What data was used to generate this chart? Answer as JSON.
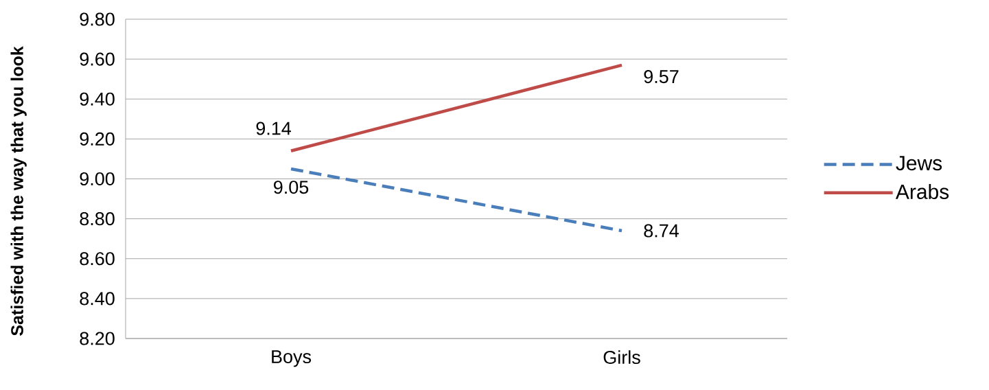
{
  "chart_data": {
    "type": "line",
    "ylabel": "Satisfied with the way that you look",
    "categories": [
      "Boys",
      "Girls"
    ],
    "series": [
      {
        "name": "Jews",
        "color": "#4a7ebb",
        "line_style": "dashed",
        "values": [
          9.05,
          8.74
        ]
      },
      {
        "name": "Arabs",
        "color": "#be4b48",
        "line_style": "solid",
        "values": [
          9.14,
          9.57
        ]
      }
    ],
    "ylim": [
      8.2,
      9.8
    ],
    "yticks": [
      {
        "value": 8.2,
        "label": "8.20"
      },
      {
        "value": 8.4,
        "label": "8.40"
      },
      {
        "value": 8.6,
        "label": "8.60"
      },
      {
        "value": 8.8,
        "label": "8.80"
      },
      {
        "value": 9.0,
        "label": "9.00"
      },
      {
        "value": 9.2,
        "label": "9.20"
      },
      {
        "value": 9.4,
        "label": "9.40"
      },
      {
        "value": 9.6,
        "label": "9.60"
      },
      {
        "value": 9.8,
        "label": "9.80"
      }
    ],
    "grid": "y",
    "legend": "right",
    "data_labels": true,
    "marker": "none"
  }
}
